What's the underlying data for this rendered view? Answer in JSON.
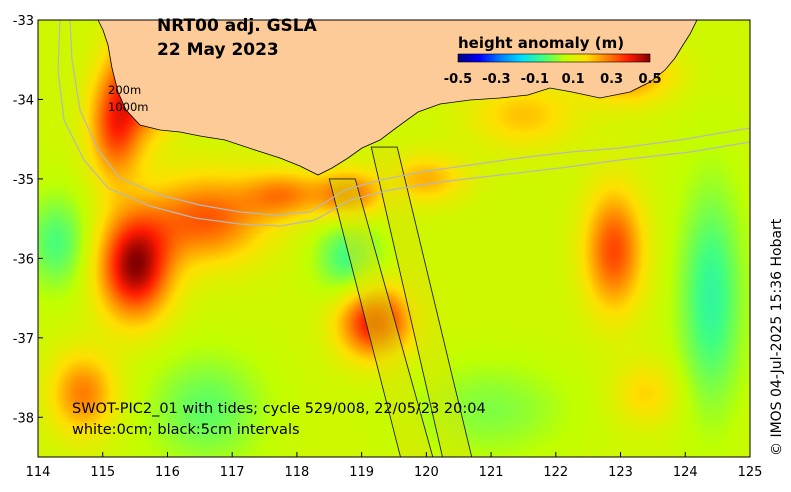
{
  "title": {
    "line1": "NRT00 adj. GSLA",
    "line2": "22 May 2023"
  },
  "colorbar": {
    "title": "height anomaly (m)",
    "ticks": [
      "-0.5",
      "-0.3",
      "-0.1",
      "0.1",
      "0.3",
      "0.5"
    ],
    "colors": [
      "#00007f",
      "#0000ff",
      "#0080ff",
      "#00e0ff",
      "#40ff80",
      "#c0ff00",
      "#ffe000",
      "#ff8000",
      "#ff1a00",
      "#7f0000"
    ]
  },
  "contour_labels": {
    "shelf": "200m",
    "slope": "1000m"
  },
  "swot_caption": {
    "line1": "SWOT-PIC2_01 with tides; cycle 529/008, 22/05/23 20:04",
    "line2": "white:0cm; black:5cm intervals"
  },
  "credit": "© IMOS 04-Jul-2025 15:36 Hobart",
  "colors": {
    "land": "#fdcb98",
    "accent": "#000000"
  },
  "chart_data": {
    "type": "heatmap",
    "title": "NRT00 adj. GSLA 22 May 2023",
    "xlabel": "",
    "ylabel": "",
    "xlim": [
      114,
      125
    ],
    "ylim": [
      -38.5,
      -33
    ],
    "x_ticks": [
      {
        "value": 114,
        "label": "114"
      },
      {
        "value": 115,
        "label": "115"
      },
      {
        "value": 116,
        "label": "116"
      },
      {
        "value": 117,
        "label": "117"
      },
      {
        "value": 118,
        "label": "118"
      },
      {
        "value": 119,
        "label": "119"
      },
      {
        "value": 120,
        "label": "120"
      },
      {
        "value": 121,
        "label": "121"
      },
      {
        "value": 122,
        "label": "122"
      },
      {
        "value": 123,
        "label": "123"
      },
      {
        "value": 124,
        "label": "124"
      },
      {
        "value": 125,
        "label": "125"
      }
    ],
    "y_ticks": [
      {
        "value": -33,
        "label": "-33"
      },
      {
        "value": -34,
        "label": "-34"
      },
      {
        "value": -35,
        "label": "-35"
      },
      {
        "value": -36,
        "label": "-36"
      },
      {
        "value": -37,
        "label": "-37"
      },
      {
        "value": -38,
        "label": "-38"
      }
    ],
    "color_range": [
      -0.5,
      0.5
    ],
    "background_level": 0.08,
    "features": [
      {
        "lon": 115.7,
        "lat": -33.6,
        "amp": 0.34,
        "rx": 0.45,
        "ry": 0.7
      },
      {
        "lon": 115.2,
        "lat": -34.3,
        "amp": 0.28,
        "rx": 0.4,
        "ry": 0.7
      },
      {
        "lon": 115.5,
        "lat": -36.1,
        "amp": 0.4,
        "rx": 0.55,
        "ry": 0.65
      },
      {
        "lon": 116.6,
        "lat": -35.5,
        "amp": 0.24,
        "rx": 0.9,
        "ry": 0.55
      },
      {
        "lon": 117.8,
        "lat": -35.2,
        "amp": 0.18,
        "rx": 0.6,
        "ry": 0.3
      },
      {
        "lon": 118.8,
        "lat": -35.2,
        "amp": 0.22,
        "rx": 0.5,
        "ry": 0.3
      },
      {
        "lon": 120.0,
        "lat": -35.0,
        "amp": 0.14,
        "rx": 0.6,
        "ry": 0.3
      },
      {
        "lon": 121.5,
        "lat": -34.2,
        "amp": 0.12,
        "rx": 0.8,
        "ry": 0.4
      },
      {
        "lon": 123.1,
        "lat": -33.7,
        "amp": 0.18,
        "rx": 0.7,
        "ry": 0.35
      },
      {
        "lon": 122.9,
        "lat": -35.9,
        "amp": 0.26,
        "rx": 0.45,
        "ry": 0.75
      },
      {
        "lon": 119.2,
        "lat": -36.8,
        "amp": 0.33,
        "rx": 0.55,
        "ry": 0.45
      },
      {
        "lon": 118.8,
        "lat": -36.0,
        "amp": -0.14,
        "rx": 0.5,
        "ry": 0.5
      },
      {
        "lon": 114.3,
        "lat": -35.8,
        "amp": -0.13,
        "rx": 0.5,
        "ry": 0.6
      },
      {
        "lon": 114.7,
        "lat": -37.7,
        "amp": 0.2,
        "rx": 0.5,
        "ry": 0.5
      },
      {
        "lon": 116.6,
        "lat": -37.9,
        "amp": -0.11,
        "rx": 0.9,
        "ry": 0.7
      },
      {
        "lon": 124.4,
        "lat": -36.5,
        "amp": -0.16,
        "rx": 0.5,
        "ry": 1.4
      },
      {
        "lon": 121.0,
        "lat": -37.9,
        "amp": -0.08,
        "rx": 1.2,
        "ry": 0.6
      },
      {
        "lon": 123.4,
        "lat": -37.7,
        "amp": 0.1,
        "rx": 0.5,
        "ry": 0.4
      }
    ],
    "swot_swaths": [
      {
        "name": "swath-west",
        "points": [
          [
            118.5,
            -35.0
          ],
          [
            118.9,
            -35.0
          ],
          [
            120.1,
            -38.5
          ],
          [
            119.6,
            -38.5
          ]
        ]
      },
      {
        "name": "swath-east",
        "points": [
          [
            119.15,
            -34.6
          ],
          [
            119.55,
            -34.6
          ],
          [
            120.7,
            -38.5
          ],
          [
            120.25,
            -38.5
          ]
        ]
      }
    ]
  }
}
